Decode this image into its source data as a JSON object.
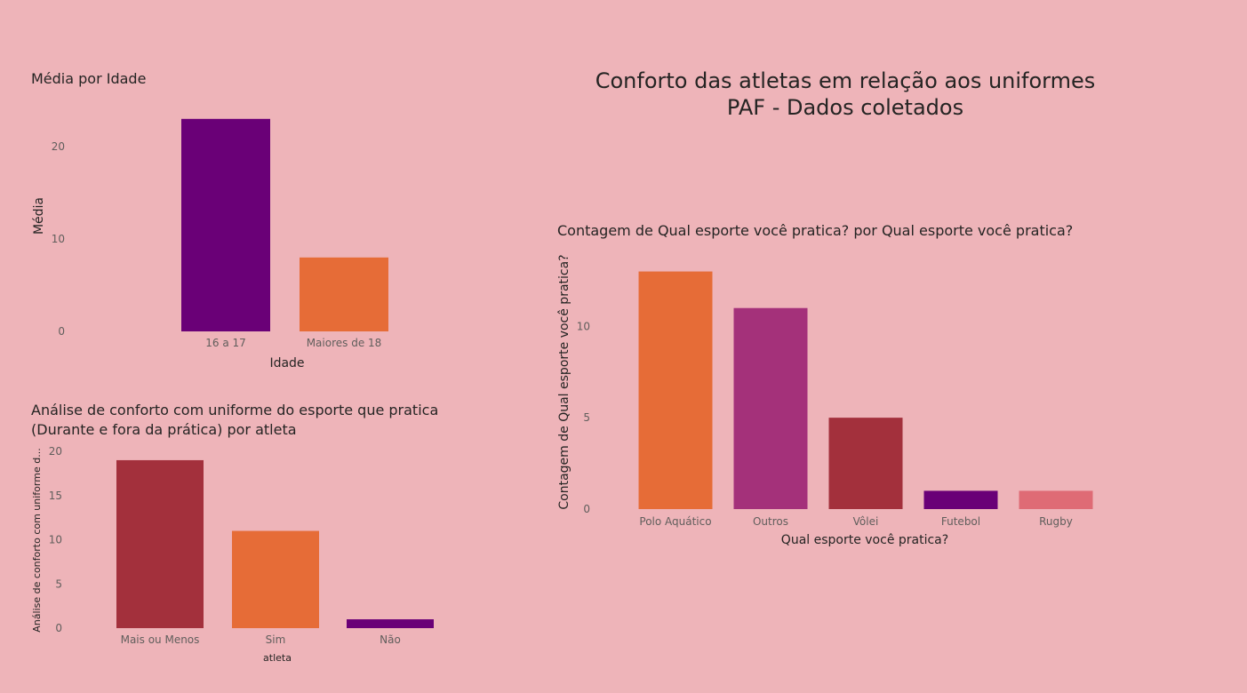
{
  "page": {
    "title_line1": "Conforto das atletas em relação aos uniformes",
    "title_line2": "PAF - Dados coletados"
  },
  "colors": {
    "background": "#eeb4b9",
    "purple": "#6a0077",
    "orange": "#e66c37",
    "magenta": "#a4317a",
    "crimson": "#a3303c",
    "rose": "#df6b75"
  },
  "chart_data": [
    {
      "id": "media-idade",
      "type": "bar",
      "title": "Média por Idade",
      "xlabel": "Idade",
      "ylabel": "Média",
      "categories": [
        "16 a 17",
        "Maiores de 18"
      ],
      "values": [
        23,
        8
      ],
      "bar_colors": [
        "#6a0077",
        "#e66c37"
      ],
      "ylim": [
        0,
        25
      ],
      "yticks": [
        0,
        10,
        20
      ],
      "grid": false,
      "legend": "none"
    },
    {
      "id": "conforto-atleta",
      "type": "bar",
      "title_line1": "Análise de conforto com uniforme do esporte que pratica",
      "title_line2": "(Durante e fora da prática) por atleta",
      "xlabel": "atleta",
      "ylabel": "Análise de conforto com uniforme d...",
      "categories": [
        "Mais ou Menos",
        "Sim",
        "Não"
      ],
      "values": [
        19,
        11,
        1
      ],
      "bar_colors": [
        "#a3303c",
        "#e66c37",
        "#6a0077"
      ],
      "ylim": [
        0,
        20
      ],
      "yticks": [
        0,
        5,
        10,
        15,
        20
      ],
      "grid": false,
      "legend": "none"
    },
    {
      "id": "contagem-esporte",
      "type": "bar",
      "title": "Contagem de Qual esporte você pratica? por Qual esporte você pratica?",
      "xlabel": "Qual esporte você pratica?",
      "ylabel": "Contagem de Qual esporte você pratica?",
      "categories": [
        "Polo Aquático",
        "Outros",
        "Vôlei",
        "Futebol",
        "Rugby"
      ],
      "values": [
        13,
        11,
        5,
        1,
        1
      ],
      "bar_colors": [
        "#e66c37",
        "#a4317a",
        "#a3303c",
        "#6a0077",
        "#df6b75"
      ],
      "ylim": [
        0,
        14
      ],
      "yticks": [
        0,
        5,
        10
      ],
      "grid": false,
      "legend": "none"
    }
  ]
}
